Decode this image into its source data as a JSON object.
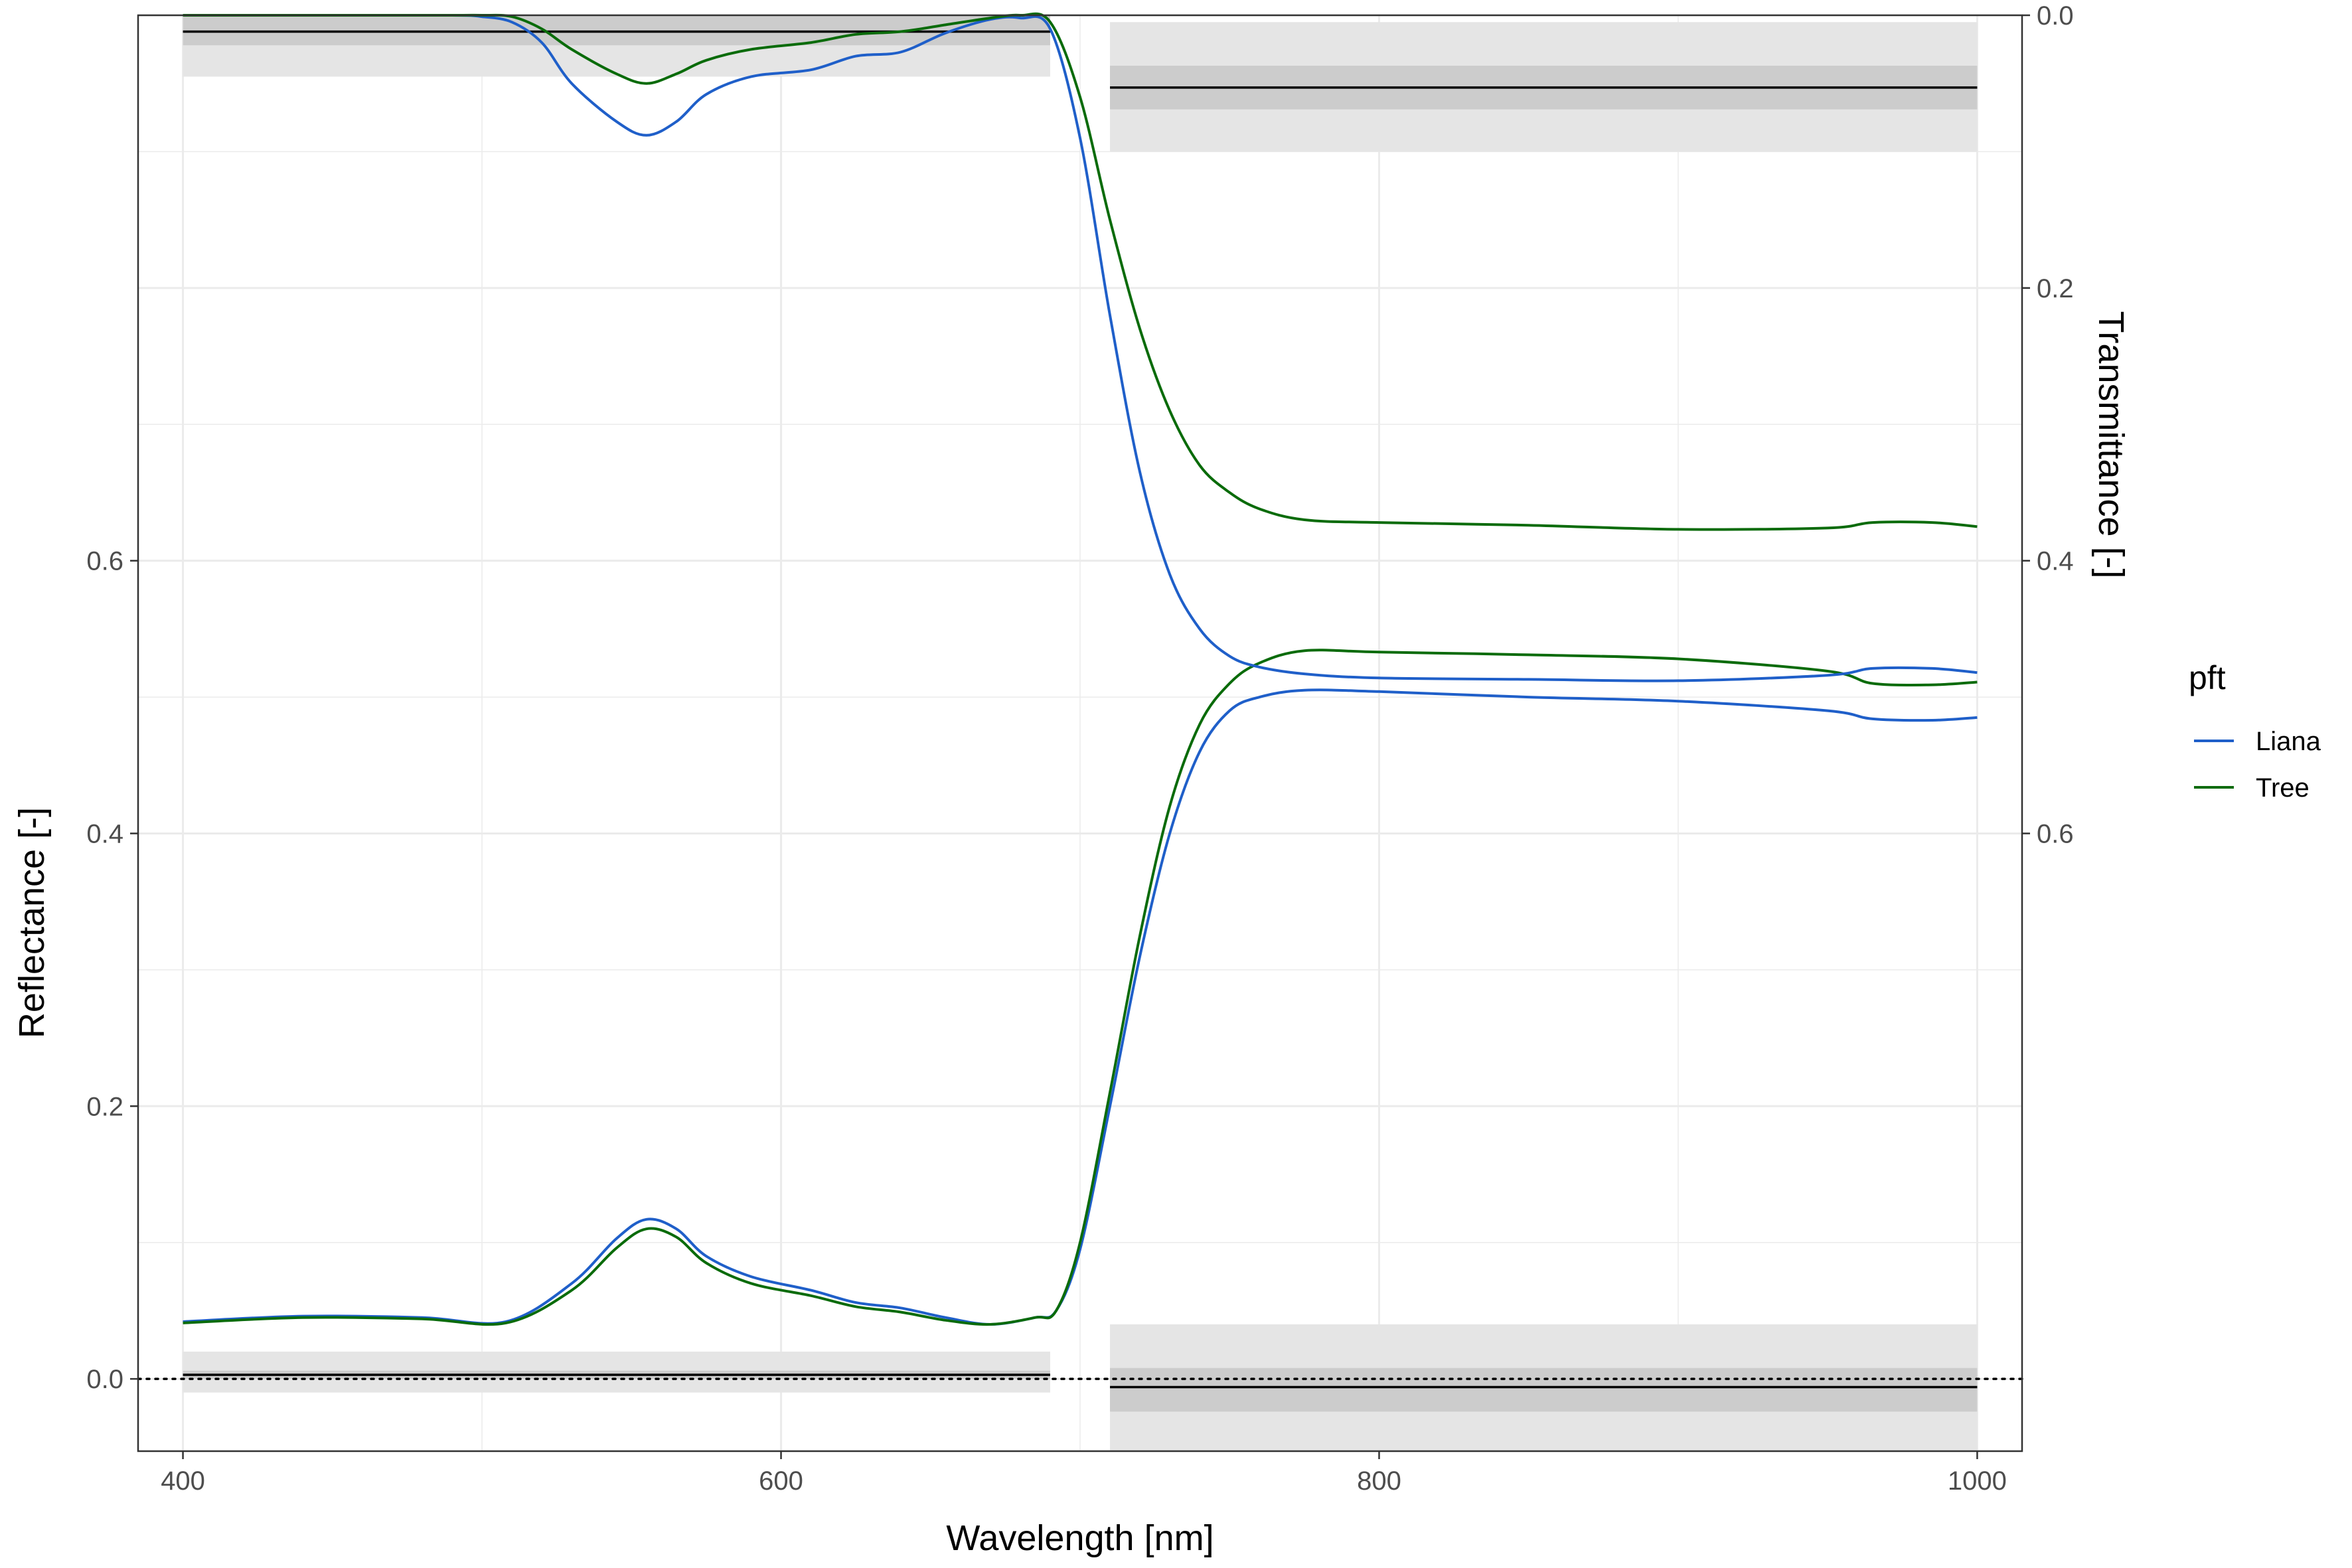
{
  "chart_data": {
    "type": "line",
    "xlabel": "Wavelength [nm]",
    "ylabel": "Reflectance [-]",
    "y2label": "Transmittance [-]",
    "xlim": [
      385,
      1015
    ],
    "ylim": [
      -0.053,
      1.0
    ],
    "y2_mapping": "reflectance = 1 - transmittance",
    "x_ticks": [
      400,
      600,
      800,
      1000
    ],
    "y_ticks": [
      0.0,
      0.2,
      0.4,
      0.6
    ],
    "y2_ticks": [
      0.0,
      0.2,
      0.4,
      0.6
    ],
    "grid": true,
    "legend": {
      "title": "pft",
      "position": "right",
      "entries": [
        {
          "name": "Liana",
          "color": "#1f5fc9"
        },
        {
          "name": "Tree",
          "color": "#0a6b0a"
        }
      ]
    },
    "reference_line": {
      "y": 0.0,
      "style": "dotted"
    },
    "bands": [
      {
        "axis": "reflectance",
        "x": [
          400,
          690
        ],
        "mean": 0.003,
        "inner": [
          0.0,
          0.006
        ],
        "outer": [
          -0.01,
          0.02
        ]
      },
      {
        "axis": "reflectance",
        "x": [
          710,
          1000
        ],
        "mean": -0.006,
        "inner": [
          -0.024,
          0.008
        ],
        "outer": [
          -0.058,
          0.04
        ]
      },
      {
        "axis": "transmittance",
        "x": [
          400,
          690
        ],
        "mean": 0.012,
        "inner": [
          0.0,
          0.022
        ],
        "outer": [
          0.0,
          0.045
        ]
      },
      {
        "axis": "transmittance",
        "x": [
          710,
          1000
        ],
        "mean": 0.053,
        "inner": [
          0.037,
          0.069
        ],
        "outer": [
          0.005,
          0.1
        ]
      }
    ],
    "series": [
      {
        "name": "Liana",
        "axis": "reflectance",
        "color": "#1f5fc9",
        "x": [
          400,
          440,
          480,
          508,
          530,
          545,
          555,
          565,
          575,
          590,
          610,
          625,
          640,
          655,
          670,
          685,
          692,
          700,
          710,
          720,
          730,
          740,
          750,
          760,
          775,
          800,
          850,
          900,
          950,
          965,
          985,
          1000
        ],
        "values": [
          0.042,
          0.046,
          0.045,
          0.042,
          0.07,
          0.103,
          0.117,
          0.11,
          0.09,
          0.075,
          0.065,
          0.056,
          0.052,
          0.045,
          0.04,
          0.045,
          0.05,
          0.095,
          0.2,
          0.31,
          0.4,
          0.46,
          0.49,
          0.5,
          0.505,
          0.504,
          0.5,
          0.497,
          0.49,
          0.484,
          0.483,
          0.485
        ]
      },
      {
        "name": "Tree",
        "axis": "reflectance",
        "color": "#0a6b0a",
        "x": [
          400,
          440,
          480,
          508,
          530,
          545,
          555,
          565,
          575,
          590,
          610,
          625,
          640,
          655,
          670,
          685,
          692,
          700,
          710,
          720,
          730,
          740,
          750,
          760,
          775,
          800,
          850,
          900,
          950,
          965,
          985,
          1000
        ],
        "values": [
          0.041,
          0.045,
          0.044,
          0.041,
          0.065,
          0.096,
          0.11,
          0.104,
          0.085,
          0.07,
          0.061,
          0.053,
          0.049,
          0.043,
          0.04,
          0.045,
          0.05,
          0.1,
          0.21,
          0.325,
          0.42,
          0.48,
          0.51,
          0.525,
          0.534,
          0.533,
          0.531,
          0.528,
          0.519,
          0.51,
          0.509,
          0.511
        ]
      },
      {
        "name": "Liana",
        "axis": "transmittance",
        "color": "#1f5fc9",
        "x": [
          400,
          450,
          490,
          500,
          510,
          520,
          530,
          545,
          555,
          565,
          575,
          590,
          610,
          625,
          640,
          655,
          670,
          680,
          690,
          700,
          710,
          720,
          730,
          740,
          750,
          760,
          775,
          800,
          850,
          900,
          950,
          965,
          985,
          1000
        ],
        "values": [
          0.0,
          0.0,
          0.0,
          0.001,
          0.005,
          0.02,
          0.05,
          0.078,
          0.088,
          0.078,
          0.058,
          0.045,
          0.04,
          0.03,
          0.027,
          0.013,
          0.003,
          0.002,
          0.01,
          0.09,
          0.22,
          0.335,
          0.41,
          0.45,
          0.47,
          0.478,
          0.483,
          0.486,
          0.487,
          0.488,
          0.484,
          0.479,
          0.479,
          0.482
        ]
      },
      {
        "name": "Tree",
        "axis": "transmittance",
        "color": "#0a6b0a",
        "x": [
          400,
          450,
          490,
          500,
          510,
          520,
          530,
          545,
          555,
          565,
          575,
          590,
          610,
          625,
          640,
          655,
          670,
          680,
          690,
          700,
          710,
          720,
          730,
          740,
          750,
          760,
          775,
          800,
          850,
          900,
          950,
          965,
          985,
          1000
        ],
        "values": [
          0.0,
          0.0,
          0.0,
          0.0,
          0.001,
          0.01,
          0.025,
          0.043,
          0.05,
          0.043,
          0.033,
          0.025,
          0.02,
          0.014,
          0.012,
          0.007,
          0.002,
          0.0,
          0.005,
          0.06,
          0.15,
          0.23,
          0.29,
          0.33,
          0.35,
          0.362,
          0.37,
          0.372,
          0.374,
          0.377,
          0.376,
          0.372,
          0.372,
          0.375
        ]
      }
    ]
  }
}
